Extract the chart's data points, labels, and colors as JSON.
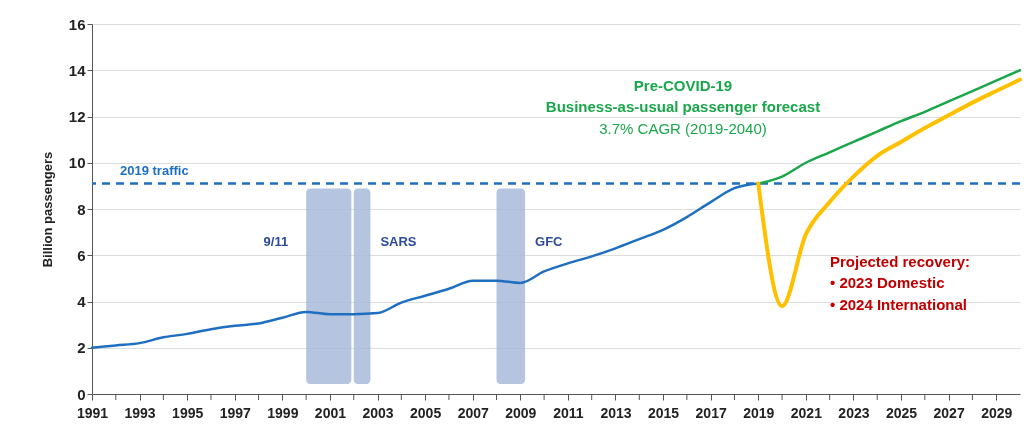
{
  "chart_data": {
    "type": "line",
    "ylabel": "Billion passengers",
    "xlim": [
      1991,
      2030
    ],
    "ylim": [
      0,
      16
    ],
    "xticks": [
      1991,
      {
        "value": 1992,
        "label": null
      },
      1993,
      {
        "value": 1994,
        "label": null
      },
      1995,
      {
        "value": 1996,
        "label": null
      },
      1997,
      {
        "value": 1998,
        "label": null
      },
      1999,
      {
        "value": 2000,
        "label": null
      },
      2001,
      {
        "value": 2002,
        "label": null
      },
      2003,
      {
        "value": 2004,
        "label": null
      },
      2005,
      {
        "value": 2006,
        "label": null
      },
      2007,
      {
        "value": 2008,
        "label": null
      },
      2009,
      {
        "value": 2010,
        "label": null
      },
      2011,
      {
        "value": 2012,
        "label": null
      },
      2013,
      {
        "value": 2014,
        "label": null
      },
      2015,
      {
        "value": 2016,
        "label": null
      },
      2017,
      {
        "value": 2018,
        "label": null
      },
      2019,
      {
        "value": 2020,
        "label": null
      },
      2021,
      {
        "value": 2022,
        "label": null
      },
      2023,
      {
        "value": 2024,
        "label": null
      },
      2025,
      {
        "value": 2026,
        "label": null
      },
      2027,
      {
        "value": 2028,
        "label": null
      },
      2029
    ],
    "yticks": [
      0,
      2,
      4,
      6,
      8,
      10,
      12,
      14,
      16
    ],
    "grid": "y",
    "series": [
      {
        "color": "#1f6fc0",
        "x": [
          1991,
          1992,
          1993,
          1994,
          1995,
          1996,
          1997,
          1998,
          1999,
          2000,
          2001,
          2002,
          2003,
          2004,
          2005,
          2006,
          2007,
          2008,
          2009,
          2010,
          2011,
          2012,
          2013,
          2014,
          2015,
          2016,
          2017,
          2018,
          2019
        ],
        "values": [
          2.0,
          2.1,
          2.2,
          2.45,
          2.6,
          2.8,
          2.95,
          3.05,
          3.3,
          3.55,
          3.45,
          3.45,
          3.5,
          3.95,
          4.25,
          4.55,
          4.9,
          4.9,
          4.8,
          5.3,
          5.65,
          5.95,
          6.3,
          6.7,
          7.1,
          7.65,
          8.3,
          8.9,
          9.1
        ]
      },
      {
        "color": "#1aa64a",
        "x": [
          2019,
          2020,
          2021,
          2022,
          2023,
          2024,
          2025,
          2026,
          2027,
          2028,
          2029,
          2030
        ],
        "values": [
          9.1,
          9.4,
          10.0,
          10.45,
          10.9,
          11.35,
          11.8,
          12.2,
          12.65,
          13.1,
          13.55,
          14.0
        ]
      },
      {
        "color": "#ffc000",
        "x": [
          2019,
          2020,
          2021,
          2022,
          2023,
          2024,
          2025,
          2026,
          2027,
          2028,
          2029,
          2030
        ],
        "values": [
          9.1,
          3.8,
          6.9,
          8.3,
          9.4,
          10.3,
          10.9,
          11.5,
          12.05,
          12.6,
          13.1,
          13.6
        ]
      }
    ],
    "ref_lines": [
      {
        "axis": "y",
        "value": 9.1,
        "label": "2019 traffic",
        "color": "#1f6fc0",
        "line_style": "dashed"
      }
    ],
    "bands": [
      {
        "axis": "x",
        "from": 2000,
        "to": 2001.9,
        "label": "9/11",
        "color": "#a9bbd9"
      },
      {
        "axis": "x",
        "from": 2002,
        "to": 2002.7,
        "label": "SARS",
        "color": "#a9bbd9"
      },
      {
        "axis": "x",
        "from": 2008,
        "to": 2009.2,
        "label": "GFC",
        "color": "#a9bbd9"
      }
    ],
    "annotations": [
      "Pre-COVID-19",
      "Business-as-usual passenger forecast",
      "3.7% CAGR (2019-2040)",
      "Projected recovery:",
      "• 2023 Domestic",
      "• 2024 International"
    ]
  }
}
